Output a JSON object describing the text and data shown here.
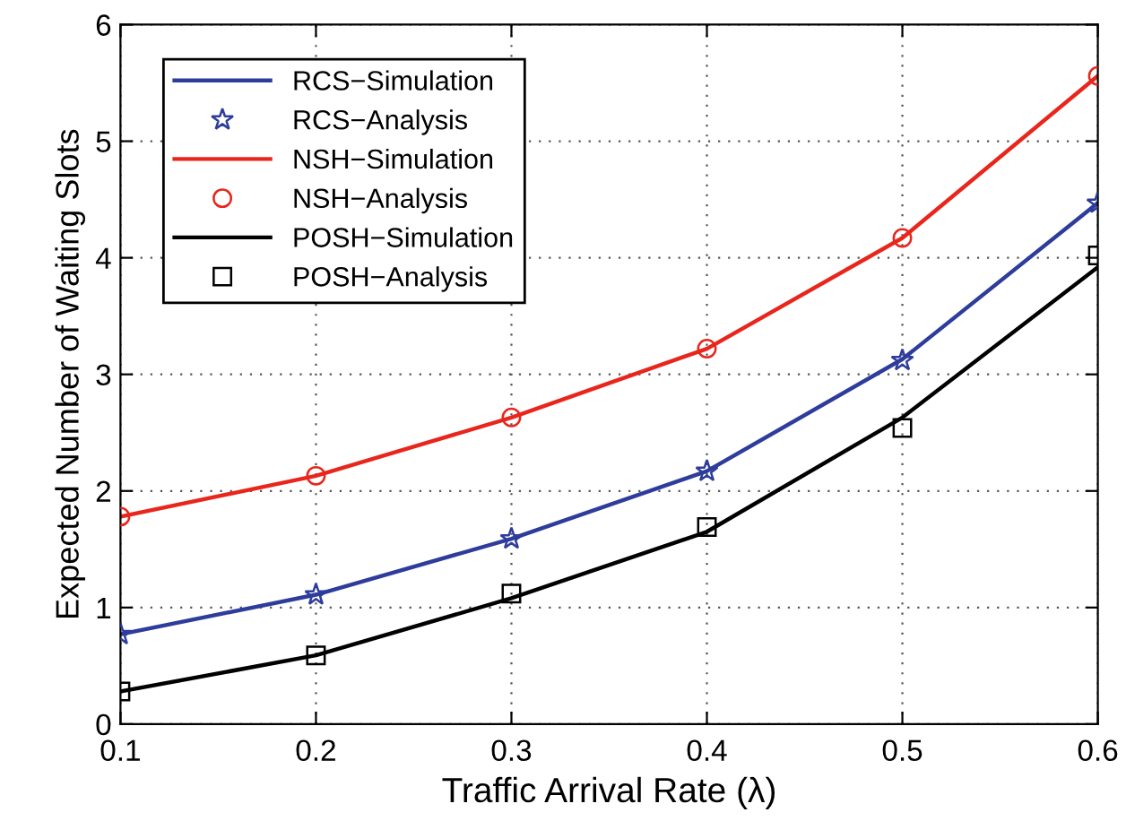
{
  "chart_data": {
    "type": "line",
    "xlabel": "Traffic Arrival Rate (λ)",
    "ylabel": "Expected Number of Waiting Slots",
    "x": [
      0.1,
      0.2,
      0.3,
      0.4,
      0.5,
      0.6
    ],
    "series": [
      {
        "name": "RCS−Simulation",
        "color": "#2e3d9c",
        "values": [
          0.77,
          1.11,
          1.59,
          2.17,
          3.13,
          4.47
        ]
      },
      {
        "name": "RCS−Analysis",
        "type": "scatter",
        "marker": "star",
        "color": "#2e3d9c",
        "values": [
          0.77,
          1.11,
          1.59,
          2.17,
          3.12,
          4.47
        ]
      },
      {
        "name": "NSH−Simulation",
        "color": "#e8261c",
        "values": [
          1.78,
          2.13,
          2.63,
          3.22,
          4.17,
          5.56
        ]
      },
      {
        "name": "NSH−Analysis",
        "type": "scatter",
        "marker": "circle",
        "color": "#e8261c",
        "values": [
          1.78,
          2.13,
          2.63,
          3.22,
          4.17,
          5.56
        ]
      },
      {
        "name": "POSH−Simulation",
        "color": "#000000",
        "values": [
          0.28,
          0.59,
          1.08,
          1.65,
          2.63,
          3.92
        ]
      },
      {
        "name": "POSH−Analysis",
        "type": "scatter",
        "marker": "square",
        "color": "#000000",
        "values": [
          0.28,
          0.59,
          1.12,
          1.69,
          2.54,
          4.02
        ]
      }
    ],
    "xlim": [
      0.1,
      0.6
    ],
    "xticks": [
      0.1,
      0.2,
      0.3,
      0.4,
      0.5,
      0.6
    ],
    "ylim": [
      0,
      6
    ],
    "yticks": [
      0,
      1,
      2,
      3,
      4,
      5,
      6
    ],
    "grid": true,
    "legend": "top left",
    "line_style": "solid"
  }
}
